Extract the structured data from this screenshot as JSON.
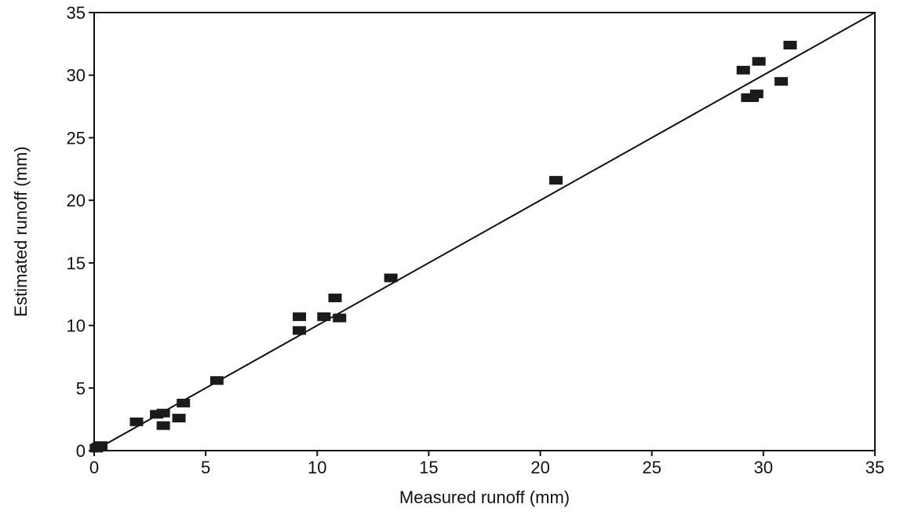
{
  "chart_data": {
    "type": "scatter",
    "title": "",
    "xlabel": "Measured runoff (mm)",
    "ylabel": "Estimated runoff (mm)",
    "xlim": [
      0,
      35
    ],
    "ylim": [
      0,
      35
    ],
    "xticks": [
      0,
      5,
      10,
      15,
      20,
      25,
      30,
      35
    ],
    "yticks": [
      0,
      5,
      10,
      15,
      20,
      25,
      30,
      35
    ],
    "grid": false,
    "legend": "none",
    "marker": "square",
    "colors": {
      "marker": "#1a1a1a",
      "line": "#111111",
      "axis": "#111111"
    },
    "series": [
      {
        "values": [
          {
            "x": 0.1,
            "y": 0.2
          },
          {
            "x": 0.2,
            "y": 0.3
          },
          {
            "x": 0.3,
            "y": 0.4
          },
          {
            "x": 1.9,
            "y": 2.3
          },
          {
            "x": 2.8,
            "y": 2.9
          },
          {
            "x": 3.1,
            "y": 3.0
          },
          {
            "x": 3.1,
            "y": 2.0
          },
          {
            "x": 3.8,
            "y": 2.6
          },
          {
            "x": 4.0,
            "y": 3.8
          },
          {
            "x": 5.5,
            "y": 5.6
          },
          {
            "x": 9.2,
            "y": 10.7
          },
          {
            "x": 9.2,
            "y": 9.6
          },
          {
            "x": 10.3,
            "y": 10.7
          },
          {
            "x": 10.8,
            "y": 12.2
          },
          {
            "x": 11.0,
            "y": 10.6
          },
          {
            "x": 13.3,
            "y": 13.8
          },
          {
            "x": 20.7,
            "y": 21.6
          },
          {
            "x": 29.1,
            "y": 30.4
          },
          {
            "x": 29.3,
            "y": 28.2
          },
          {
            "x": 29.5,
            "y": 28.2
          },
          {
            "x": 29.7,
            "y": 28.5
          },
          {
            "x": 29.8,
            "y": 31.1
          },
          {
            "x": 30.8,
            "y": 29.5
          },
          {
            "x": 31.2,
            "y": 32.4
          }
        ]
      }
    ],
    "lines": [
      {
        "kind": "1:1 line",
        "from": {
          "x": 0,
          "y": 0
        },
        "to": {
          "x": 35,
          "y": 35
        }
      }
    ]
  }
}
